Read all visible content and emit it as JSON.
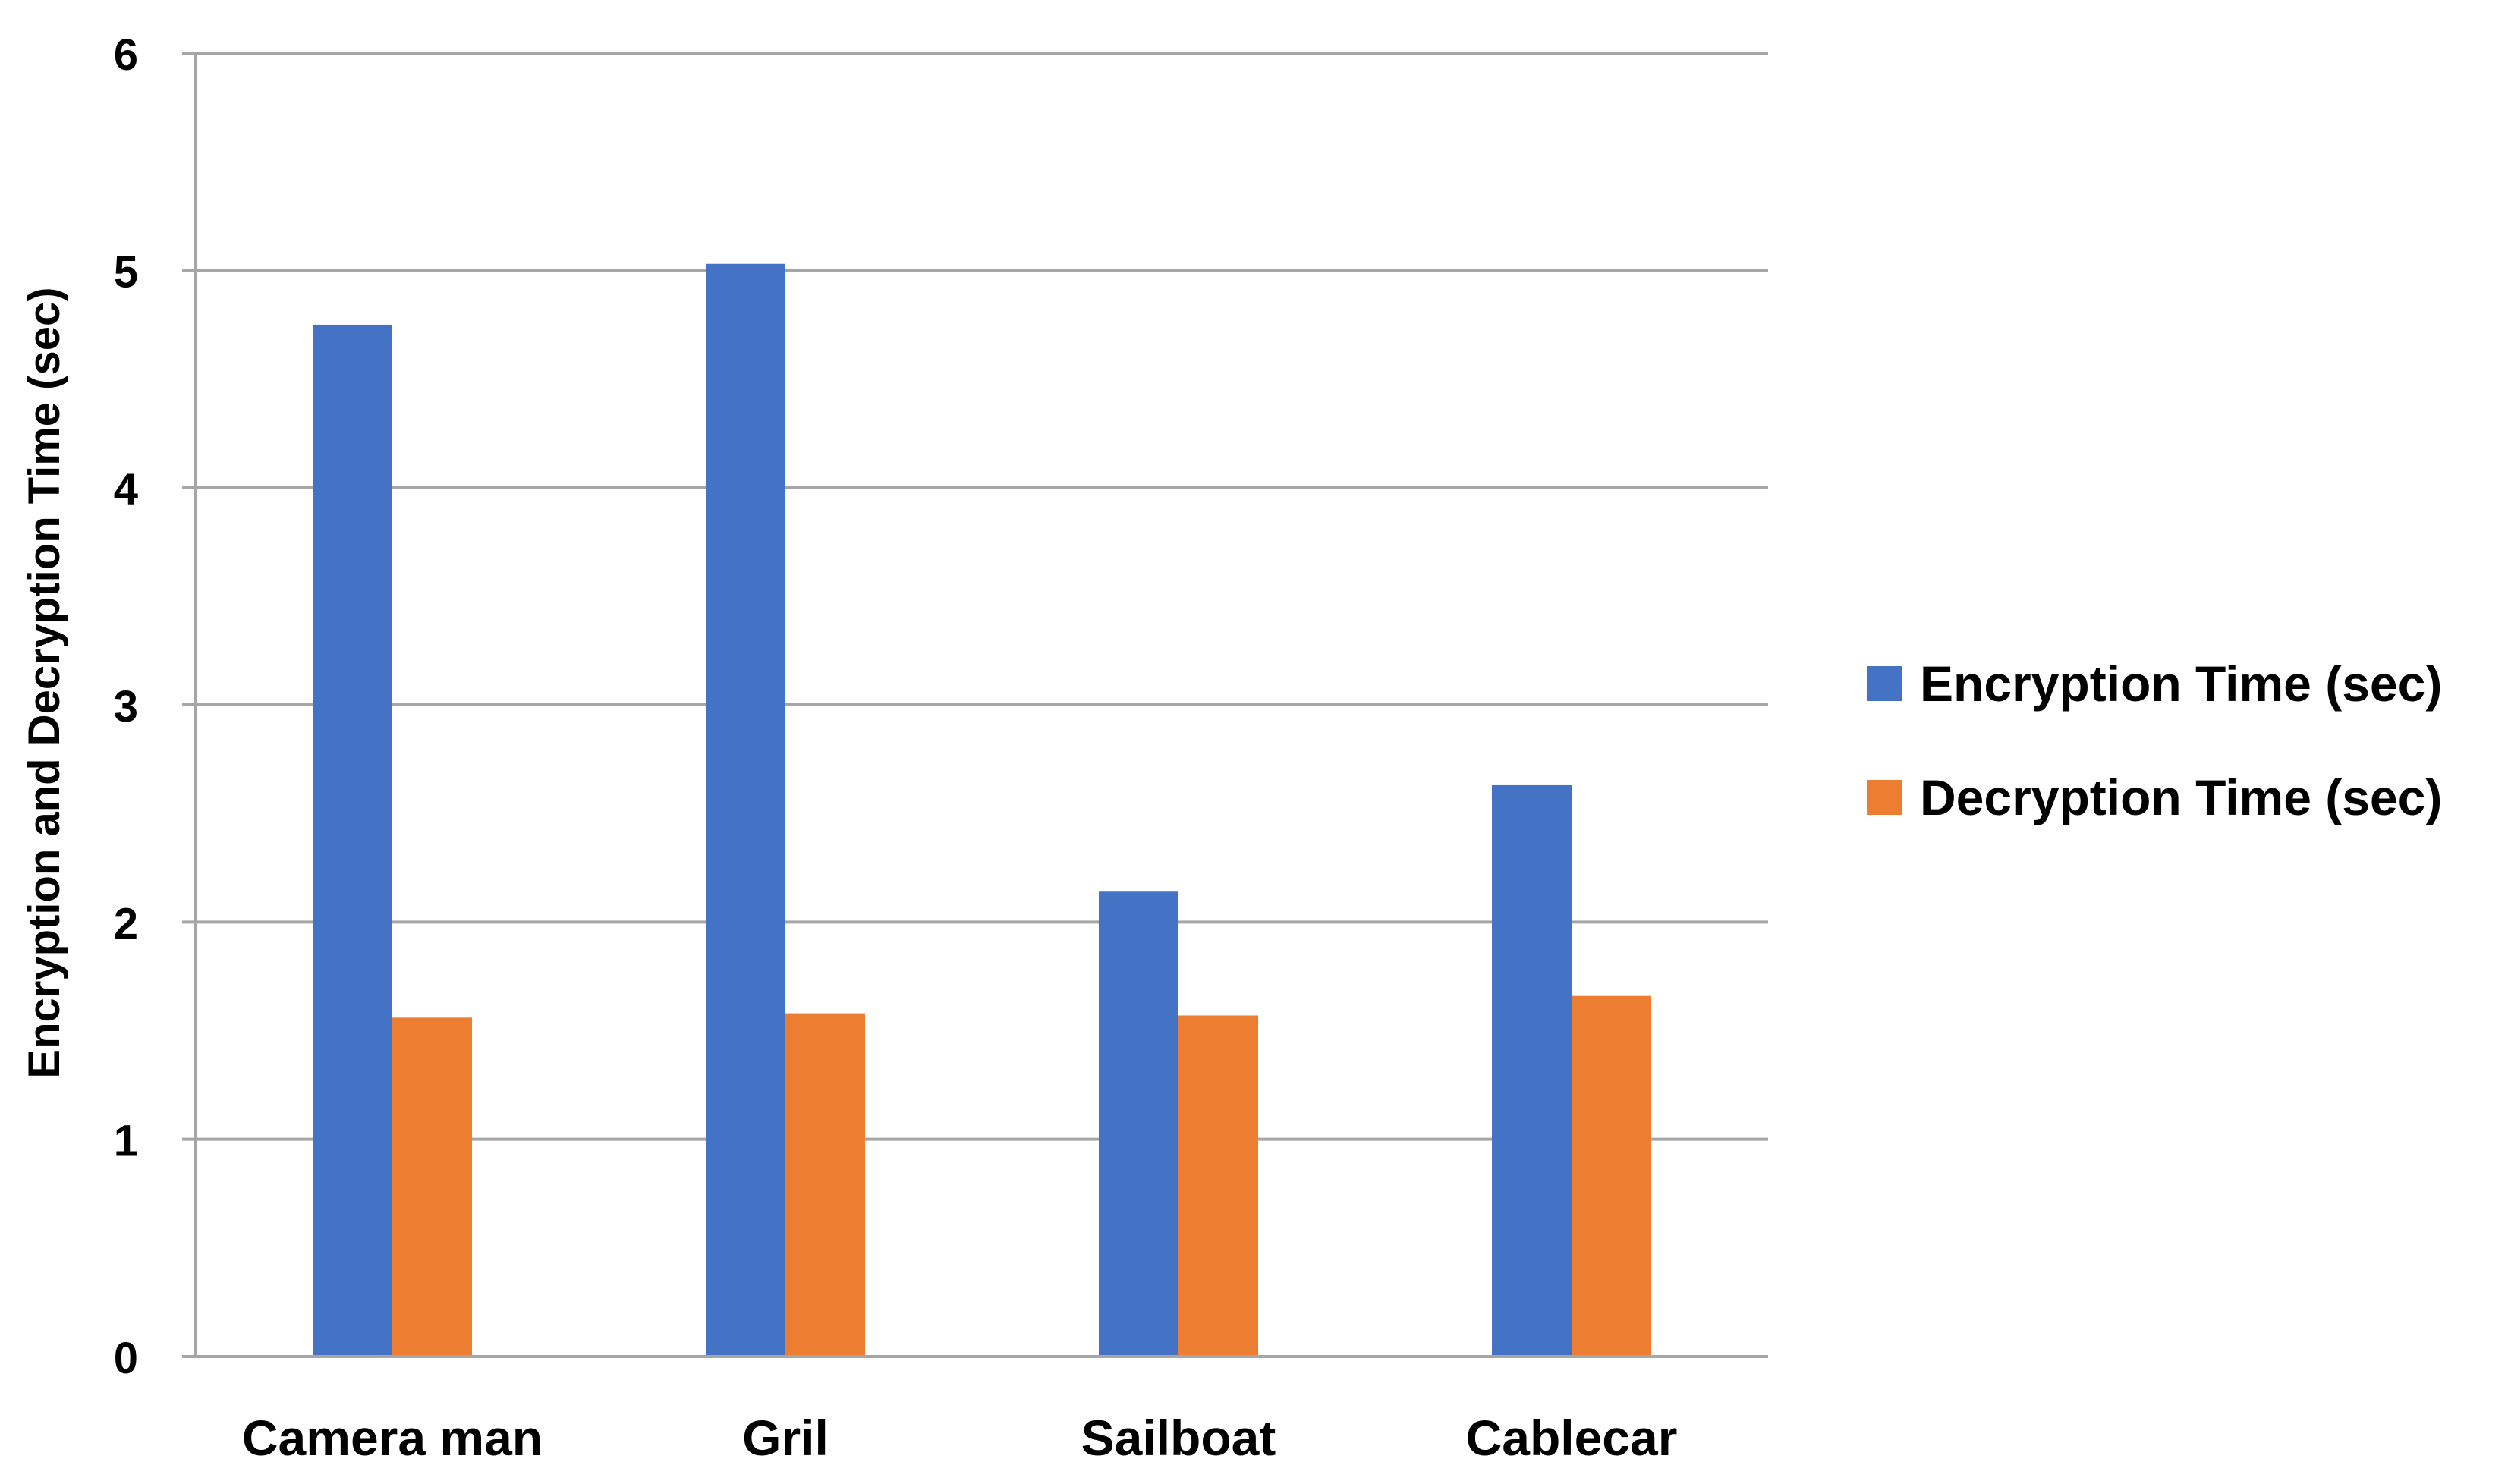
{
  "chart_data": {
    "type": "bar",
    "title": "",
    "xlabel": "",
    "ylabel": "Encryption and Decryption Time (sec)",
    "categories": [
      "Camera man",
      "Gril",
      "Sailboat",
      "Cablecar"
    ],
    "series": [
      {
        "name": "Encryption Time (sec)",
        "color": "#4472C4",
        "values": [
          4.75,
          5.03,
          2.14,
          2.63
        ]
      },
      {
        "name": "Decryption Time (sec)",
        "color": "#ED7D31",
        "values": [
          1.56,
          1.58,
          1.57,
          1.66
        ]
      }
    ],
    "ylim": [
      0,
      6
    ],
    "yticks": [
      "0",
      "1",
      "2",
      "3",
      "4",
      "5",
      "6"
    ],
    "grid": true,
    "gridline_color": "#A6A6A6",
    "legend_position": "right"
  }
}
